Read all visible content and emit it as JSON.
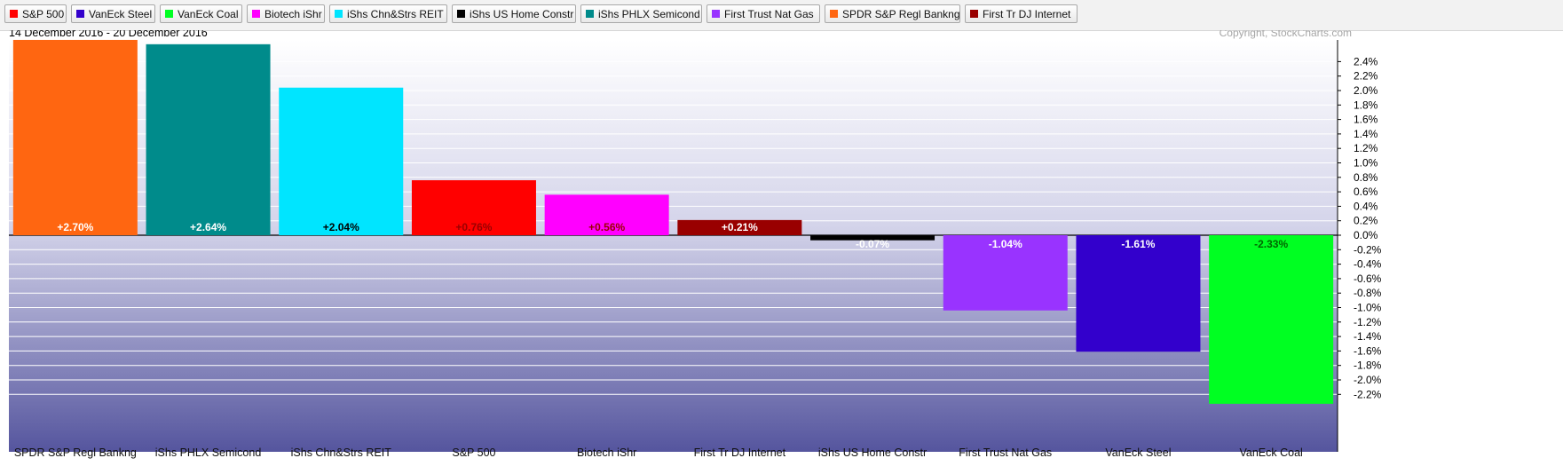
{
  "legend": [
    {
      "label": "S&P 500",
      "color": "#ff0000"
    },
    {
      "label": "VanEck Steel",
      "color": "#3300cc"
    },
    {
      "label": "VanEck Coal",
      "color": "#00ff22"
    },
    {
      "label": "Biotech iShr",
      "color": "#ff00ff"
    },
    {
      "label": "iShs Chn&Strs REIT",
      "color": "#00e5ff"
    },
    {
      "label": "iShs US Home Constr",
      "color": "#000000"
    },
    {
      "label": "iShs PHLX Semicond",
      "color": "#008b8b"
    },
    {
      "label": "First Trust Nat Gas",
      "color": "#9933ff"
    },
    {
      "label": "SPDR S&P Regl Bankng",
      "color": "#ff6611"
    },
    {
      "label": "First Tr DJ Internet",
      "color": "#990000"
    }
  ],
  "date_range": "14 December 2016 - 20 December 2016",
  "copyright": "Copyright, StockCharts.com",
  "chart_data": {
    "type": "bar",
    "categories": [
      "SPDR S&P Regl Bankng",
      "iShs PHLX Semicond",
      "iShs Chn&Strs REIT",
      "S&P 500",
      "Biotech iShr",
      "First Tr DJ Internet",
      "iShs US Home Constr",
      "First Trust Nat Gas",
      "VanEck Steel",
      "VanEck Coal"
    ],
    "values": [
      2.7,
      2.64,
      2.04,
      0.76,
      0.56,
      0.21,
      -0.07,
      -1.04,
      -1.61,
      -2.33
    ],
    "value_labels": [
      "+2.70%",
      "+2.64%",
      "+2.04%",
      "+0.76%",
      "+0.56%",
      "+0.21%",
      "-0.07%",
      "-1.04%",
      "-1.61%",
      "-2.33%"
    ],
    "colors": [
      "#ff6611",
      "#008b8b",
      "#00e5ff",
      "#ff0000",
      "#ff00ff",
      "#990000",
      "#000000",
      "#9933ff",
      "#3300cc",
      "#00ff22"
    ],
    "label_colors": [
      "#ffffff",
      "#ffffff",
      "#000000",
      "#990000",
      "#990000",
      "#ffffff",
      "#ffffff",
      "#ffffff",
      "#ffffff",
      "#006600"
    ],
    "y_ticks": [
      "2.4%",
      "2.2%",
      "2.0%",
      "1.8%",
      "1.6%",
      "1.4%",
      "1.2%",
      "1.0%",
      "0.8%",
      "0.6%",
      "0.4%",
      "0.2%",
      "0.0%",
      "-0.2%",
      "-0.4%",
      "-0.6%",
      "-0.8%",
      "-1.0%",
      "-1.2%",
      "-1.4%",
      "-1.6%",
      "-1.8%",
      "-2.0%",
      "-2.2%"
    ],
    "y_tick_values": [
      2.4,
      2.2,
      2.0,
      1.8,
      1.6,
      1.4,
      1.2,
      1.0,
      0.8,
      0.6,
      0.4,
      0.2,
      0.0,
      -0.2,
      -0.4,
      -0.6,
      -0.8,
      -1.0,
      -1.2,
      -1.4,
      -1.6,
      -1.8,
      -2.0,
      -2.2
    ],
    "ylim": [
      -2.33,
      2.7
    ],
    "grid": true,
    "y_axis_position": "right"
  }
}
